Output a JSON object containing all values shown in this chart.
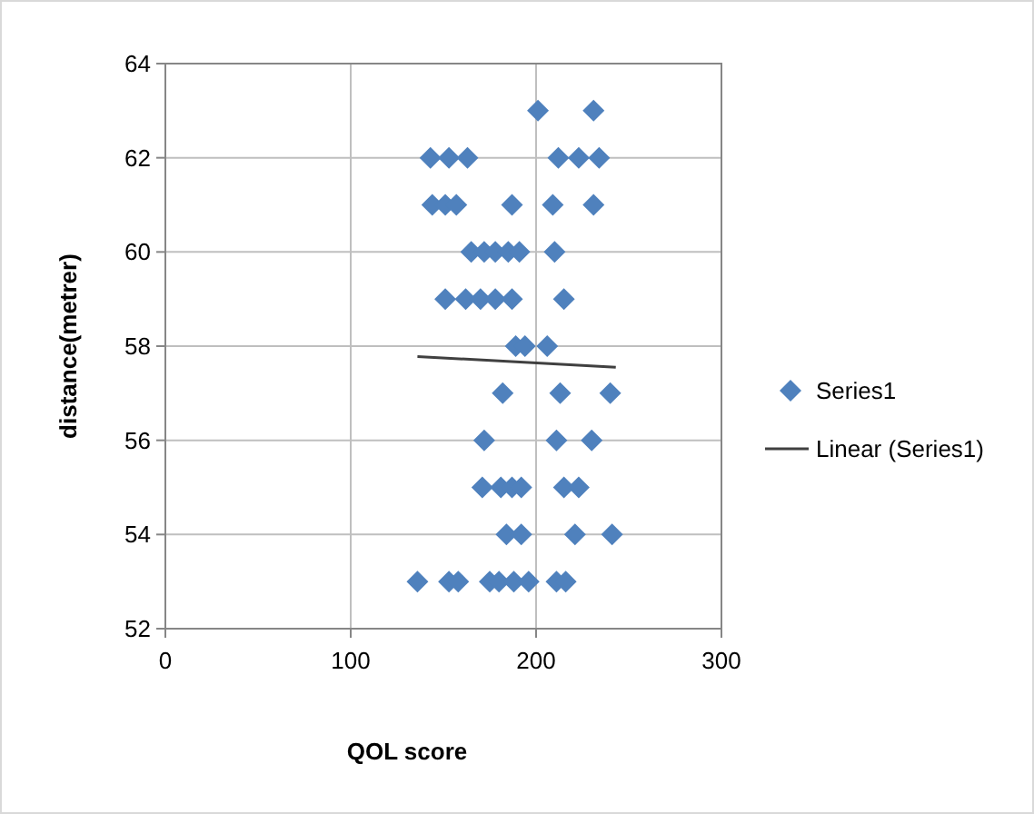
{
  "chart_data": {
    "type": "scatter",
    "xlabel": "QOL score",
    "ylabel": "distance(metrer)",
    "xlim": [
      0,
      300
    ],
    "xticks": [
      0,
      100,
      200,
      300
    ],
    "ylim": [
      52,
      64
    ],
    "yticks": [
      52,
      54,
      56,
      58,
      60,
      62,
      64
    ],
    "grid": true,
    "legend": "right",
    "series": [
      {
        "name": "Series1",
        "color": "#4f81bd",
        "marker": "diamond",
        "x": [
          201,
          231,
          143,
          153,
          163,
          212,
          223,
          234,
          144,
          151,
          157,
          187,
          209,
          231,
          165,
          172,
          178,
          185,
          191,
          210,
          151,
          162,
          170,
          178,
          187,
          215,
          189,
          194,
          206,
          182,
          213,
          240,
          172,
          211,
          230,
          171,
          181,
          187,
          192,
          215,
          223,
          184,
          192,
          221,
          241,
          136,
          153,
          158,
          175,
          180,
          188,
          196,
          211,
          216
        ],
        "values": [
          63,
          63,
          62,
          62,
          62,
          62,
          62,
          62,
          61,
          61,
          61,
          61,
          61,
          61,
          60,
          60,
          60,
          60,
          60,
          60,
          59,
          59,
          59,
          59,
          59,
          59,
          58,
          58,
          58,
          57,
          57,
          57,
          56,
          56,
          56,
          55,
          55,
          55,
          55,
          55,
          55,
          54,
          54,
          54,
          54,
          53,
          53,
          53,
          53,
          53,
          53,
          53,
          53,
          53
        ]
      },
      {
        "name": "Linear (Series1)",
        "type": "line",
        "color": "#404040",
        "marker": "none",
        "x": [
          136,
          243
        ],
        "values": [
          57.78,
          57.55
        ]
      }
    ]
  }
}
